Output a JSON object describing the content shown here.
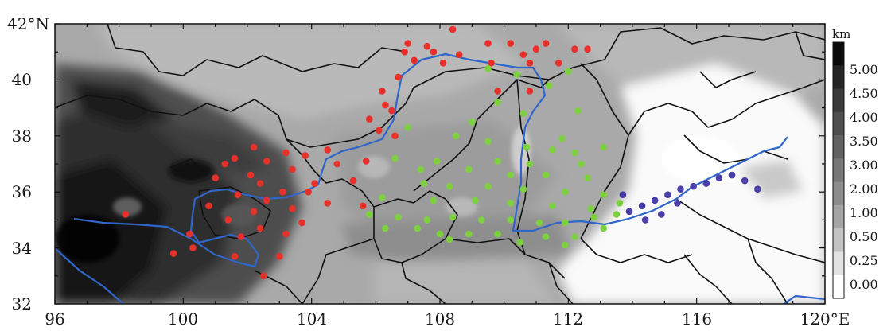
{
  "map": {
    "lon_ticks": [
      "96",
      "100",
      "104",
      "108",
      "112",
      "116",
      "120°E"
    ],
    "lat_ticks": [
      "32",
      "34",
      "36",
      "38",
      "40",
      "42°N"
    ],
    "extent": {
      "lon": [
        96,
        120
      ],
      "lat": [
        32,
        42
      ]
    },
    "colorbar": {
      "unit": "km",
      "ticks": [
        "5.00",
        "4.50",
        "4.00",
        "3.50",
        "3.00",
        "2.00",
        "1.00",
        "0.50",
        "0.25",
        "0.00"
      ],
      "colors": [
        "#0a0a0a",
        "#252525",
        "#3a3a3a",
        "#4e4e4e",
        "#626262",
        "#777777",
        "#8c8c8c",
        "#a4a4a4",
        "#c3c3c3",
        "#e2e2e2",
        "#ffffff"
      ]
    },
    "colors": {
      "red_stations": "#e8302b",
      "green_stations": "#7ed13e",
      "purple_stations": "#4a3fa8",
      "river": "#2f66c8",
      "border": "#111111"
    },
    "stations": {
      "red": [
        [
          108.4,
          41.8
        ],
        [
          107.0,
          41.3
        ],
        [
          107.6,
          41.2
        ],
        [
          109.5,
          41.3
        ],
        [
          110.2,
          41.3
        ],
        [
          111.3,
          41.3
        ],
        [
          112.2,
          41.1
        ],
        [
          106.9,
          41.0
        ],
        [
          107.8,
          41.0
        ],
        [
          108.6,
          40.9
        ],
        [
          110.6,
          40.9
        ],
        [
          111.0,
          41.1
        ],
        [
          112.6,
          41.1
        ],
        [
          107.2,
          40.7
        ],
        [
          108.1,
          40.6
        ],
        [
          109.6,
          40.6
        ],
        [
          110.8,
          40.6
        ],
        [
          111.7,
          40.6
        ],
        [
          106.7,
          40.1
        ],
        [
          106.2,
          39.6
        ],
        [
          109.8,
          39.6
        ],
        [
          110.8,
          39.6
        ],
        [
          106.3,
          39.1
        ],
        [
          106.5,
          38.9
        ],
        [
          105.8,
          38.6
        ],
        [
          106.1,
          38.2
        ],
        [
          106.6,
          38.0
        ],
        [
          104.5,
          37.5
        ],
        [
          103.2,
          37.4
        ],
        [
          102.2,
          37.6
        ],
        [
          103.8,
          37.3
        ],
        [
          101.6,
          37.2
        ],
        [
          101.3,
          37.0
        ],
        [
          102.6,
          37.1
        ],
        [
          104.8,
          37.0
        ],
        [
          105.7,
          37.1
        ],
        [
          103.4,
          36.8
        ],
        [
          102.1,
          36.6
        ],
        [
          101.0,
          36.5
        ],
        [
          104.1,
          36.3
        ],
        [
          105.3,
          36.4
        ],
        [
          102.4,
          36.3
        ],
        [
          103.9,
          36.0
        ],
        [
          103.1,
          36.0
        ],
        [
          101.7,
          35.9
        ],
        [
          102.6,
          35.7
        ],
        [
          104.5,
          35.6
        ],
        [
          105.6,
          35.5
        ],
        [
          103.4,
          35.4
        ],
        [
          102.2,
          35.3
        ],
        [
          100.8,
          35.5
        ],
        [
          101.4,
          35.0
        ],
        [
          103.7,
          34.9
        ],
        [
          102.4,
          34.7
        ],
        [
          100.2,
          34.5
        ],
        [
          101.8,
          34.4
        ],
        [
          100.3,
          34.0
        ],
        [
          99.7,
          33.8
        ],
        [
          101.6,
          33.7
        ],
        [
          103.0,
          33.7
        ],
        [
          102.5,
          33.0
        ],
        [
          98.2,
          35.2
        ],
        [
          103.2,
          34.5
        ]
      ],
      "green": [
        [
          109.5,
          40.4
        ],
        [
          110.4,
          40.2
        ],
        [
          112.0,
          40.3
        ],
        [
          111.4,
          39.8
        ],
        [
          109.8,
          39.2
        ],
        [
          110.6,
          38.8
        ],
        [
          112.3,
          38.9
        ],
        [
          107.0,
          38.3
        ],
        [
          108.5,
          38.0
        ],
        [
          109.5,
          37.8
        ],
        [
          110.7,
          37.6
        ],
        [
          111.5,
          37.5
        ],
        [
          112.2,
          37.4
        ],
        [
          113.1,
          37.6
        ],
        [
          106.6,
          37.2
        ],
        [
          107.9,
          37.1
        ],
        [
          109.8,
          37.1
        ],
        [
          110.8,
          37.0
        ],
        [
          112.4,
          37.0
        ],
        [
          107.4,
          36.8
        ],
        [
          108.9,
          36.8
        ],
        [
          110.2,
          36.6
        ],
        [
          111.3,
          36.6
        ],
        [
          112.6,
          36.5
        ],
        [
          107.5,
          36.3
        ],
        [
          108.3,
          36.2
        ],
        [
          109.5,
          36.2
        ],
        [
          110.6,
          36.1
        ],
        [
          111.9,
          36.0
        ],
        [
          113.1,
          35.9
        ],
        [
          106.2,
          35.8
        ],
        [
          107.8,
          35.7
        ],
        [
          109.1,
          35.7
        ],
        [
          110.2,
          35.6
        ],
        [
          111.5,
          35.5
        ],
        [
          112.7,
          35.4
        ],
        [
          113.6,
          35.6
        ],
        [
          105.8,
          35.2
        ],
        [
          106.7,
          35.1
        ],
        [
          107.6,
          35.0
        ],
        [
          108.4,
          35.1
        ],
        [
          109.3,
          35.0
        ],
        [
          110.2,
          35.0
        ],
        [
          111.1,
          34.9
        ],
        [
          111.9,
          34.9
        ],
        [
          112.8,
          35.1
        ],
        [
          113.5,
          35.2
        ],
        [
          107.3,
          34.7
        ],
        [
          108.0,
          34.5
        ],
        [
          108.9,
          34.5
        ],
        [
          109.8,
          34.5
        ],
        [
          111.3,
          34.4
        ],
        [
          112.2,
          34.4
        ],
        [
          113.1,
          34.7
        ],
        [
          110.5,
          34.2
        ],
        [
          111.9,
          34.1
        ],
        [
          108.3,
          34.3
        ],
        [
          106.3,
          34.7
        ],
        [
          111.8,
          37.9
        ],
        [
          109.0,
          38.5
        ]
      ],
      "purple": [
        [
          113.9,
          35.3
        ],
        [
          114.3,
          35.5
        ],
        [
          114.7,
          35.7
        ],
        [
          115.1,
          35.9
        ],
        [
          115.5,
          36.1
        ],
        [
          115.9,
          36.2
        ],
        [
          116.3,
          36.3
        ],
        [
          116.7,
          36.5
        ],
        [
          117.1,
          36.6
        ],
        [
          117.5,
          36.4
        ],
        [
          117.9,
          36.1
        ],
        [
          114.4,
          35.0
        ],
        [
          114.9,
          35.2
        ],
        [
          115.4,
          35.6
        ],
        [
          113.7,
          35.9
        ]
      ]
    }
  }
}
